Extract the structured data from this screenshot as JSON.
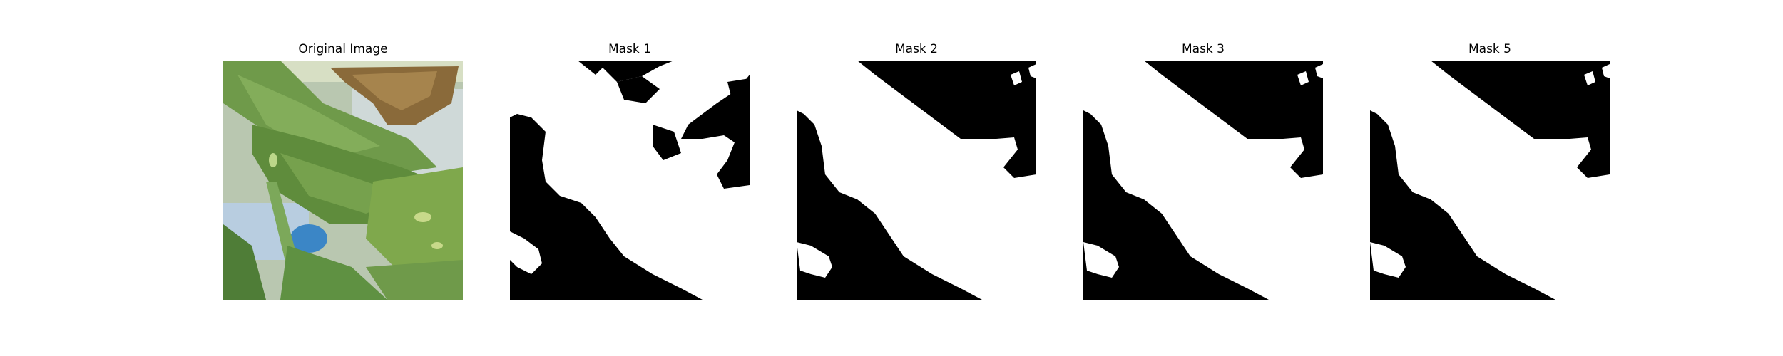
{
  "figure": {
    "panels": [
      {
        "title": "Original Image",
        "kind": "photo",
        "subject": "green-leaves-photo"
      },
      {
        "title": "Mask 1",
        "kind": "mask"
      },
      {
        "title": "Mask 2",
        "kind": "mask"
      },
      {
        "title": "Mask 3",
        "kind": "mask"
      },
      {
        "title": "Mask 5",
        "kind": "mask"
      }
    ],
    "colors": {
      "mask_foreground": "#ffffff",
      "mask_background": "#000000",
      "leaf_green": "#6f9a4a",
      "dry_leaf_brown": "#8a6a3a",
      "sky_blue": "#9cc4e0"
    }
  }
}
